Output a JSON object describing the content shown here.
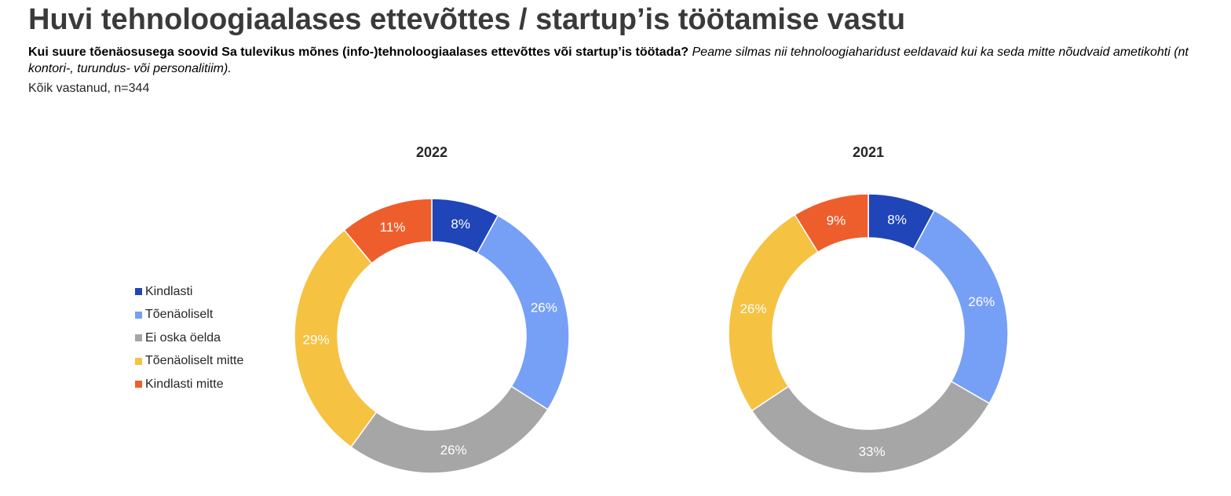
{
  "header": {
    "title": "Huvi tehnoloogiaalases ettevõttes / startup’is töötamise vastu",
    "question_bold": "Kui suure tõenäosusega soovid Sa tulevikus mõnes (info-)tehnoloogiaalases ettevõttes või startup’is töötada?",
    "question_italic": "Peame silmas nii tehnoloogiaharidust eeldavaid kui ka seda mitte nõudvaid ametikohti (nt kontori-, turundus- või personalitiim).",
    "base": "Kõik vastanud, n=344"
  },
  "legend": [
    {
      "label": "Kindlasti",
      "color": "#1f45b8"
    },
    {
      "label": "Tõenäoliselt",
      "color": "#76a0f5"
    },
    {
      "label": "Ei oska öelda",
      "color": "#a6a6a6"
    },
    {
      "label": "Tõenäoliselt mitte",
      "color": "#f5c242"
    },
    {
      "label": "Kindlasti mitte",
      "color": "#ee5e2c"
    }
  ],
  "chart_data": [
    {
      "type": "pie",
      "donut": true,
      "title": "2022",
      "categories": [
        "Kindlasti",
        "Tõenäoliselt",
        "Ei oska öelda",
        "Tõenäoliselt mitte",
        "Kindlasti mitte"
      ],
      "values": [
        8,
        26,
        26,
        29,
        11
      ],
      "labels": [
        "8%",
        "26%",
        "26%",
        "29%",
        "11%"
      ],
      "unit": "%"
    },
    {
      "type": "pie",
      "donut": true,
      "title": "2021",
      "categories": [
        "Kindlasti",
        "Tõenäoliselt",
        "Ei oska öelda",
        "Tõenäoliselt mitte",
        "Kindlasti mitte"
      ],
      "values": [
        8,
        26,
        33,
        26,
        9
      ],
      "labels": [
        "8%",
        "26%",
        "33%",
        "26%",
        "9%"
      ],
      "unit": "%"
    }
  ]
}
